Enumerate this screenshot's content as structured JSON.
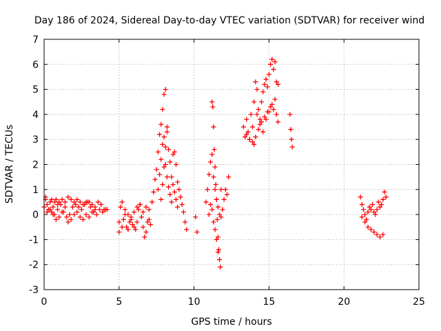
{
  "chart_data": {
    "type": "scatter",
    "title": "Day 186 of 2024, Sidereal Day-to-day VTEC variation (SDTVAR) for receiver wind",
    "xlabel": "GPS time / hours",
    "ylabel": "SDTVAR / TECUs",
    "xlim": [
      0,
      25
    ],
    "ylim": [
      -3,
      7
    ],
    "xticks": [
      "0",
      "5",
      "10",
      "15",
      "20",
      "25"
    ],
    "yticks": [
      "-3",
      "-2",
      "-1",
      "0",
      "1",
      "2",
      "3",
      "4",
      "5",
      "6",
      "7"
    ],
    "grid": true,
    "marker": "+",
    "color": "#ff0000",
    "series": [
      {
        "name": "SDTVAR",
        "x": [
          0.0,
          0.1,
          0.2,
          0.3,
          0.4,
          0.5,
          0.6,
          0.7,
          0.8,
          0.9,
          1.0,
          1.2,
          1.4,
          1.6,
          1.8,
          2.0,
          2.2,
          2.4,
          2.6,
          2.8,
          3.0,
          3.2,
          3.4,
          3.6,
          3.8,
          4.0,
          4.2,
          0.1,
          0.3,
          0.5,
          0.7,
          0.9,
          1.1,
          1.3,
          1.5,
          1.7,
          1.9,
          2.1,
          2.3,
          2.5,
          2.7,
          2.9,
          3.1,
          3.3,
          3.5,
          3.7,
          3.9,
          4.1,
          0.2,
          0.4,
          0.6,
          0.8,
          1.0,
          1.2,
          1.4,
          1.6,
          1.8,
          2.0,
          2.2,
          2.4,
          2.6,
          2.8,
          3.0,
          3.2,
          3.4,
          5.0,
          5.1,
          5.2,
          5.3,
          5.4,
          5.5,
          5.6,
          5.7,
          5.8,
          5.9,
          6.0,
          6.1,
          6.2,
          6.3,
          6.4,
          6.5,
          6.6,
          6.7,
          6.8,
          6.9,
          7.0,
          7.1,
          5.0,
          5.2,
          5.4,
          5.6,
          5.8,
          6.0,
          6.2,
          6.4,
          6.6,
          6.8,
          7.0,
          7.2,
          7.3,
          7.4,
          7.5,
          7.6,
          7.7,
          7.8,
          7.9,
          8.0,
          8.1,
          8.2,
          8.3,
          8.4,
          8.5,
          8.6,
          8.7,
          8.8,
          8.9,
          9.0,
          9.1,
          9.2,
          9.3,
          9.4,
          9.5,
          7.6,
          7.7,
          7.8,
          7.9,
          8.0,
          8.1,
          8.2,
          8.3,
          8.4,
          8.5,
          8.6,
          8.7,
          8.8,
          8.9,
          7.8,
          7.9,
          8.0,
          8.1,
          8.2,
          10.1,
          10.2,
          10.8,
          10.9,
          11.0,
          11.1,
          11.2,
          11.3,
          11.4,
          11.5,
          11.6,
          11.7,
          11.8,
          11.9,
          12.0,
          12.1,
          12.2,
          12.3,
          11.2,
          11.25,
          11.3,
          11.35,
          11.4,
          11.45,
          11.5,
          11.55,
          11.6,
          11.65,
          11.7,
          11.75,
          11.8,
          11.0,
          11.1,
          11.2,
          11.3,
          11.4,
          11.5,
          11.6,
          13.3,
          13.4,
          13.5,
          13.6,
          13.7,
          13.8,
          13.9,
          14.0,
          14.1,
          14.2,
          14.3,
          14.4,
          14.5,
          14.6,
          14.7,
          14.8,
          14.9,
          15.0,
          15.1,
          15.2,
          15.3,
          15.4,
          15.5,
          15.6,
          13.5,
          13.7,
          13.9,
          14.1,
          14.3,
          14.5,
          14.7,
          14.9,
          15.1,
          15.3,
          15.5,
          14.0,
          14.2,
          14.4,
          14.6,
          14.8,
          15.0,
          15.2,
          15.4,
          15.6,
          16.4,
          16.45,
          16.5,
          16.55,
          21.1,
          21.2,
          21.3,
          21.4,
          21.5,
          21.6,
          21.7,
          21.8,
          21.9,
          22.0,
          22.1,
          22.2,
          22.3,
          22.4,
          22.5,
          22.6,
          22.7,
          22.8,
          21.2,
          21.4,
          21.6,
          21.8,
          22.0,
          22.2,
          22.4,
          22.6
        ],
        "y": [
          0.3,
          0.6,
          0.4,
          0.2,
          0.5,
          0.6,
          0.3,
          0.5,
          0.6,
          0.4,
          0.5,
          0.6,
          0.5,
          0.7,
          0.6,
          0.5,
          0.6,
          0.5,
          0.4,
          0.5,
          0.5,
          0.4,
          0.3,
          0.5,
          0.4,
          0.2,
          0.2,
          0.7,
          0.2,
          0.1,
          0.0,
          0.2,
          0.4,
          0.1,
          -0.1,
          0.0,
          0.3,
          0.4,
          0.3,
          0.2,
          0.4,
          0.5,
          0.3,
          0.1,
          0.0,
          0.2,
          0.1,
          0.2,
          0.1,
          0.2,
          0.0,
          -0.2,
          -0.1,
          0.1,
          0.3,
          -0.3,
          -0.2,
          0.0,
          0.1,
          -0.1,
          -0.2,
          0.0,
          -0.1,
          0.1,
          0.2,
          -0.7,
          0.3,
          0.5,
          -0.2,
          0.0,
          -0.5,
          -0.6,
          -0.3,
          -0.1,
          -0.4,
          0.1,
          -0.6,
          -0.3,
          0.2,
          0.4,
          -0.1,
          -0.5,
          -0.9,
          -0.7,
          -0.3,
          -0.2,
          -0.4,
          -0.3,
          -0.5,
          0.2,
          0.0,
          -0.2,
          -0.5,
          0.3,
          0.4,
          0.1,
          0.3,
          0.2,
          0.5,
          0.9,
          1.4,
          1.8,
          2.5,
          3.2,
          3.6,
          4.2,
          4.8,
          5.0,
          3.5,
          2.6,
          2.1,
          1.5,
          2.4,
          2.5,
          2.0,
          1.3,
          1.0,
          0.7,
          0.4,
          0.1,
          -0.3,
          -0.6,
          1.0,
          1.6,
          2.2,
          2.8,
          3.1,
          2.0,
          1.5,
          1.1,
          0.8,
          0.5,
          1.2,
          0.9,
          0.6,
          0.3,
          0.6,
          1.2,
          1.9,
          2.7,
          3.3,
          -0.1,
          -0.7,
          0.5,
          1.0,
          1.6,
          2.1,
          2.4,
          1.5,
          1.0,
          0.6,
          0.3,
          0.0,
          -0.1,
          0.2,
          0.6,
          1.0,
          0.8,
          1.5,
          4.5,
          4.3,
          3.5,
          2.6,
          1.9,
          1.2,
          0.6,
          -0.2,
          -0.9,
          -1.4,
          -1.8,
          -2.1,
          1.0,
          0.0,
          0.4,
          0.2,
          -0.3,
          -0.6,
          -1.0,
          -1.5,
          3.5,
          3.1,
          3.8,
          3.3,
          3.0,
          4.0,
          3.5,
          2.8,
          5.3,
          5.0,
          4.2,
          3.8,
          4.5,
          4.9,
          5.2,
          5.4,
          5.1,
          5.6,
          6.0,
          6.2,
          5.8,
          6.1,
          5.3,
          5.2,
          3.2,
          3.0,
          2.9,
          3.1,
          3.4,
          3.7,
          3.9,
          4.1,
          4.3,
          4.2,
          4.0,
          4.5,
          4.0,
          3.6,
          3.3,
          3.8,
          4.1,
          4.4,
          4.6,
          3.7,
          4.0,
          3.4,
          3.0,
          2.7,
          0.7,
          0.4,
          0.2,
          0.0,
          -0.2,
          0.1,
          0.3,
          0.2,
          0.4,
          0.1,
          0.0,
          0.2,
          0.5,
          0.3,
          0.4,
          0.6,
          0.9,
          0.7,
          -0.1,
          -0.3,
          -0.5,
          -0.6,
          -0.7,
          -0.8,
          -0.9,
          -0.8
        ]
      }
    ]
  }
}
